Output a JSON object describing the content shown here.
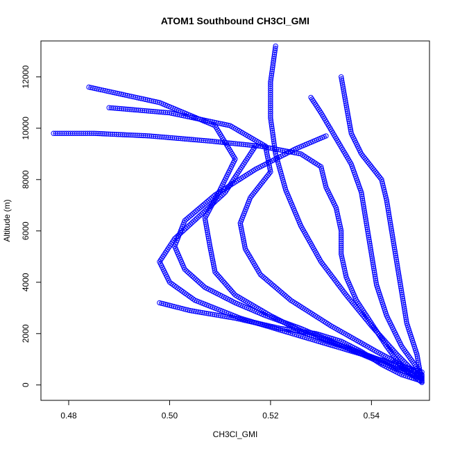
{
  "chart_data": {
    "type": "scatter",
    "title": "ATOM1 Southbound CH3Cl_GMI",
    "xlabel": "CH3Cl_GMI",
    "ylabel": "Altitude (m)",
    "xlim": [
      0.4745,
      0.5515
    ],
    "ylim": [
      -600,
      13400
    ],
    "xticks": [
      0.48,
      0.5,
      0.52,
      0.54
    ],
    "xtick_labels": [
      "0.48",
      "0.50",
      "0.52",
      "0.54"
    ],
    "yticks": [
      0,
      2000,
      4000,
      6000,
      8000,
      10000,
      12000
    ],
    "ytick_labels": [
      "0",
      "2000",
      "4000",
      "6000",
      "8000",
      "10000",
      "12000"
    ],
    "grid": false,
    "legend": "none",
    "marker": "open-circle",
    "color": "#0000ff",
    "series": [
      {
        "x": [
          0.55,
          0.546,
          0.543,
          0.54,
          0.537,
          0.535,
          0.534,
          0.534,
          0.533,
          0.531,
          0.53,
          0.526,
          0.518,
          0.508,
          0.496,
          0.485,
          0.477
        ],
        "y": [
          100,
          700,
          1500,
          2400,
          3300,
          4200,
          5100,
          6000,
          6900,
          7700,
          8500,
          9000,
          9300,
          9500,
          9700,
          9800,
          9800
        ]
      },
      {
        "x": [
          0.55,
          0.545,
          0.54,
          0.535,
          0.53,
          0.526,
          0.523,
          0.521,
          0.52,
          0.52,
          0.521
        ],
        "y": [
          200,
          1200,
          2300,
          3500,
          4800,
          6200,
          7600,
          9000,
          10400,
          11800,
          13200
        ]
      },
      {
        "x": [
          0.55,
          0.544,
          0.536,
          0.527,
          0.52,
          0.513,
          0.509,
          0.508,
          0.507,
          0.51,
          0.513,
          0.509,
          0.498,
          0.484
        ],
        "y": [
          300,
          800,
          1400,
          2000,
          2700,
          3500,
          4400,
          5400,
          6500,
          7600,
          8800,
          10100,
          11000,
          11600
        ]
      },
      {
        "x": [
          0.55,
          0.546,
          0.542,
          0.538,
          0.534,
          0.529,
          0.522,
          0.513,
          0.504,
          0.498
        ],
        "y": [
          150,
          400,
          800,
          1300,
          1700,
          2000,
          2200,
          2600,
          2900,
          3200
        ]
      },
      {
        "x": [
          0.55,
          0.549,
          0.547,
          0.546,
          0.545,
          0.544,
          0.543,
          0.542,
          0.54,
          0.538,
          0.536,
          0.534
        ],
        "y": [
          100,
          1200,
          2400,
          3600,
          4800,
          6000,
          7200,
          8000,
          8500,
          9000,
          9800,
          12000
        ]
      },
      {
        "x": [
          0.55,
          0.544,
          0.538,
          0.532,
          0.526,
          0.519,
          0.513,
          0.507,
          0.503,
          0.501,
          0.503,
          0.509,
          0.517,
          0.525,
          0.531
        ],
        "y": [
          250,
          700,
          1200,
          1700,
          2200,
          2700,
          3200,
          3800,
          4500,
          5400,
          6400,
          7400,
          8400,
          9200,
          9700
        ]
      },
      {
        "x": [
          0.55,
          0.541,
          0.532,
          0.524,
          0.518,
          0.515,
          0.514,
          0.516,
          0.52,
          0.519,
          0.512,
          0.5,
          0.488
        ],
        "y": [
          350,
          1300,
          2300,
          3300,
          4300,
          5300,
          6300,
          7300,
          8300,
          9300,
          10100,
          10600,
          10800
        ]
      },
      {
        "x": [
          0.55,
          0.538,
          0.526,
          0.514,
          0.505,
          0.5,
          0.498,
          0.501,
          0.506,
          0.511,
          0.514,
          0.517
        ],
        "y": [
          500,
          1200,
          1900,
          2600,
          3300,
          4000,
          4800,
          5700,
          6600,
          7500,
          8400,
          9300
        ]
      },
      {
        "x": [
          0.55,
          0.546,
          0.543,
          0.541,
          0.54,
          0.539,
          0.538,
          0.536,
          0.533,
          0.53,
          0.528
        ],
        "y": [
          400,
          1500,
          2700,
          3900,
          5100,
          6300,
          7500,
          8600,
          9600,
          10600,
          11200
        ]
      }
    ]
  }
}
